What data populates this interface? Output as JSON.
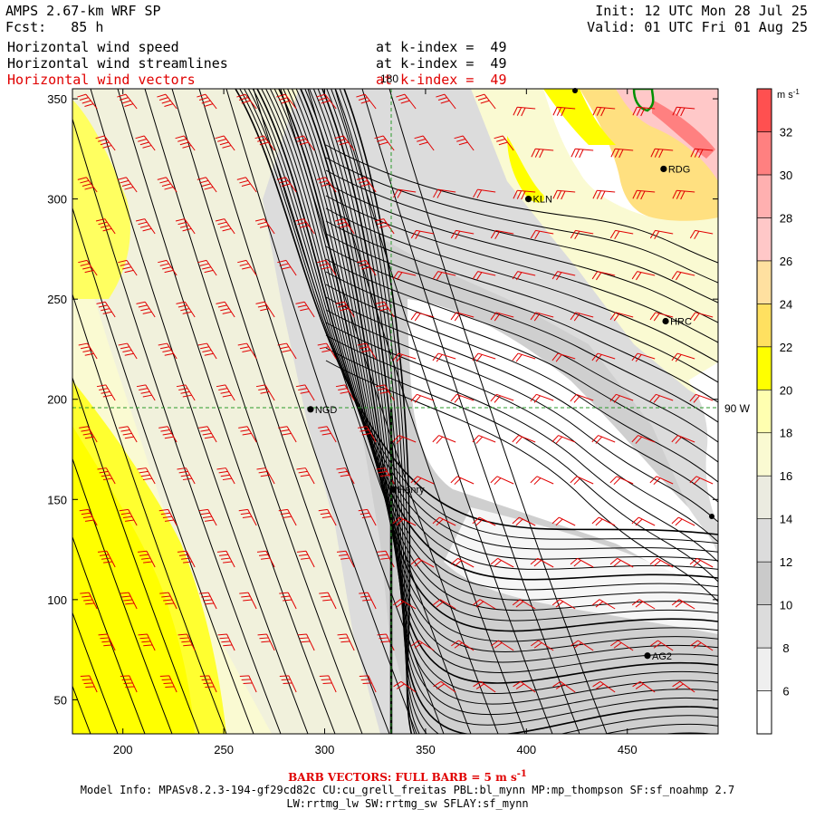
{
  "header": {
    "model": "AMPS 2.67-km WRF SP",
    "fcst_label": "Fcst:",
    "fcst_value": "85 h",
    "init": "Init: 12 UTC Mon 28 Jul 25",
    "valid": "Valid: 01 UTC Fri 01 Aug 25",
    "fields": [
      {
        "name": "Horizontal wind speed",
        "level": "at k-index =  49",
        "color": "#000000"
      },
      {
        "name": "Horizontal wind streamlines",
        "level": "at k-index =  49",
        "color": "#000000"
      },
      {
        "name": "Horizontal wind vectors",
        "level": "at k-index =  49",
        "color": "#e00000"
      }
    ]
  },
  "map": {
    "x_ticks": [
      "200",
      "250",
      "300",
      "350",
      "400",
      "450"
    ],
    "y_ticks": [
      "350",
      "300",
      "250",
      "200",
      "150",
      "100",
      "50"
    ],
    "meridian_label": "180",
    "parallel_label": "90 W",
    "stations": [
      {
        "name": "KLN",
        "x": 401,
        "y": 300
      },
      {
        "name": "RDG",
        "x": 468,
        "y": 315
      },
      {
        "name": "HRC",
        "x": 469,
        "y": 239
      },
      {
        "name": "NGD",
        "x": 293,
        "y": 195
      },
      {
        "name": "Henry",
        "x": 334,
        "y": 155
      },
      {
        "name": "AG2",
        "x": 460,
        "y": 72
      }
    ],
    "extent": {
      "x": [
        175,
        495
      ],
      "y": [
        33,
        355
      ]
    }
  },
  "colorbar": {
    "units": "m s",
    "units_exp": "-1",
    "labels": [
      "32",
      "30",
      "28",
      "26",
      "24",
      "22",
      "20",
      "18",
      "16",
      "14",
      "12",
      "10",
      "8",
      "6"
    ],
    "colors": [
      "#ffffff",
      "#efefef",
      "#dcdcdc",
      "#cacaca",
      "#dcdcdc",
      "#ebebe0",
      "#fafad2",
      "#ffffb0",
      "#ffff00",
      "#ffe060",
      "#ffe0a0",
      "#ffc8c8",
      "#ffb0b0",
      "#ff8080",
      "#ff5050"
    ]
  },
  "footer": {
    "barb_vectors": "BARB VECTORS: FULL BARB = 5 m s",
    "barb_exp": "-1",
    "model_info": "Model Info: MPASv8.2.3-194-gf29cd82c CU:cu_grell_freitas PBL:bl_mynn MP:mp_thompson SF:sf_noahmp 2.7",
    "model_info2": "LW:rrtmg_lw SW:rrtmg_sw SFLAY:sf_mynn"
  }
}
